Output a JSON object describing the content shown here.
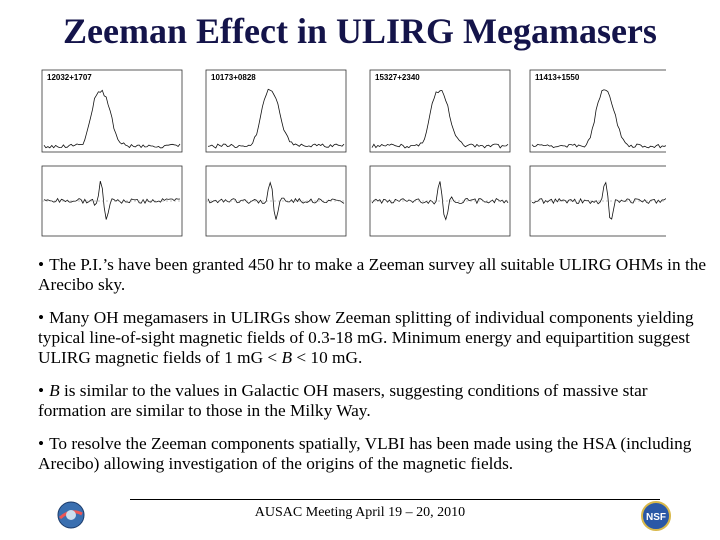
{
  "title": "Zeeman Effect in ULIRG Megamasers",
  "figure": {
    "panels": [
      "12032+1707",
      "10173+0828",
      "15327+2340",
      "11413+1550"
    ]
  },
  "marker": "•",
  "bullets": [
    [
      {
        "text": "The P.I.’s  have been granted 450 hr to make a Zeeman survey all suitable ULIRG OHMs in the Arecibo sky.",
        "italic": false
      }
    ],
    [
      {
        "text": "Many OH megamasers in ULIRGs show Zeeman splitting of individual components yielding typical line-of-sight magnetic fields of 0.3-18 mG. Minimum energy and equipartition suggest ULIRG magnetic fields of  1 mG < ",
        "italic": false
      },
      {
        "text": "B",
        "italic": true
      },
      {
        "text": " < 10 mG.",
        "italic": false
      }
    ],
    [
      {
        "text": "B",
        "italic": true
      },
      {
        "text": " is similar to the values in Galactic OH masers, suggesting conditions of massive star formation are similar to those in the Milky Way.",
        "italic": false
      }
    ],
    [
      {
        "text": "To resolve the Zeeman components spatially, VLBI has been made using the HSA (including Arecibo) allowing investigation of  the origins of the magnetic fields.",
        "italic": false
      }
    ]
  ],
  "footer": "AUSAC Meeting April 19 – 20, 2010"
}
